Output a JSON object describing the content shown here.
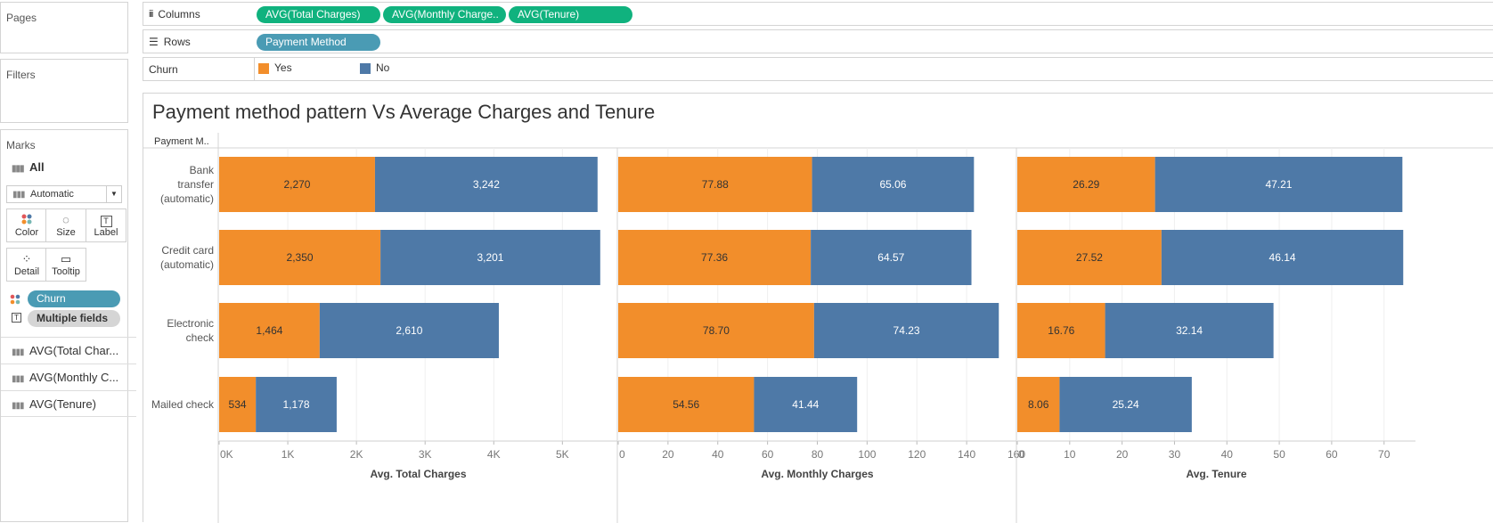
{
  "sidebar": {
    "pages_label": "Pages",
    "filters_label": "Filters",
    "marks_label": "Marks",
    "all_label": "All",
    "mark_type": "Automatic",
    "buttons": [
      {
        "label": "Color",
        "icon": "color-icon"
      },
      {
        "label": "Size",
        "icon": "size-icon"
      },
      {
        "label": "Label",
        "icon": "label-icon"
      },
      {
        "label": "Detail",
        "icon": "detail-icon"
      },
      {
        "label": "Tooltip",
        "icon": "tooltip-icon"
      }
    ],
    "color_pill": "Churn",
    "label_pill": "Multiple fields",
    "measures": [
      "AVG(Total Char...",
      "AVG(Monthly C...",
      "AVG(Tenure)"
    ]
  },
  "shelves": {
    "columns_label": "Columns",
    "columns_pills": [
      "AVG(Total Charges)",
      "AVG(Monthly Charge..",
      "AVG(Tenure)"
    ],
    "rows_label": "Rows",
    "rows_pills": [
      "Payment Method"
    ],
    "churn_label": "Churn",
    "legend": [
      {
        "label": "Yes",
        "color": "#f28e2b"
      },
      {
        "label": "No",
        "color": "#4e79a7"
      }
    ]
  },
  "chart_data": {
    "type": "bar",
    "title": "Payment method pattern Vs Average Charges and Tenure",
    "row_header": "Payment M..",
    "categories": [
      "Bank transfer (automatic)",
      "Credit card (automatic)",
      "Electronic check",
      "Mailed check"
    ],
    "category_lines": [
      [
        "Bank",
        "transfer",
        "(automatic)"
      ],
      [
        "Credit card",
        "(automatic)"
      ],
      [
        "Electronic",
        "check"
      ],
      [
        "Mailed check"
      ]
    ],
    "panels": [
      {
        "xlabel": "Avg. Total Charges",
        "xlim": [
          0,
          5800
        ],
        "ticks": [
          0,
          1000,
          2000,
          3000,
          4000,
          5000
        ],
        "tick_labels": [
          "0K",
          "1K",
          "2K",
          "3K",
          "4K",
          "5K"
        ],
        "series": [
          {
            "name": "Yes",
            "values": [
              2270,
              2350,
              1464,
              534
            ],
            "labels": [
              "2,270",
              "2,350",
              "1,464",
              "534"
            ]
          },
          {
            "name": "No",
            "values": [
              3242,
              3201,
              2610,
              1178
            ],
            "labels": [
              "3,242",
              "3,201",
              "2,610",
              "1,178"
            ]
          }
        ]
      },
      {
        "xlabel": "Avg. Monthly Charges",
        "xlim": [
          0,
          160
        ],
        "ticks": [
          0,
          20,
          40,
          60,
          80,
          100,
          120,
          140,
          160
        ],
        "tick_labels": [
          "0",
          "20",
          "40",
          "60",
          "80",
          "100",
          "120",
          "140",
          "160"
        ],
        "series": [
          {
            "name": "Yes",
            "values": [
              77.88,
              77.36,
              78.7,
              54.56
            ],
            "labels": [
              "77.88",
              "77.36",
              "78.70",
              "54.56"
            ]
          },
          {
            "name": "No",
            "values": [
              65.06,
              64.57,
              74.23,
              41.44
            ],
            "labels": [
              "65.06",
              "64.57",
              "74.23",
              "41.44"
            ]
          }
        ]
      },
      {
        "xlabel": "Avg. Tenure",
        "xlim": [
          0,
          76
        ],
        "ticks": [
          0,
          10,
          20,
          30,
          40,
          50,
          60,
          70
        ],
        "tick_labels": [
          "0",
          "10",
          "20",
          "30",
          "40",
          "50",
          "60",
          "70"
        ],
        "series": [
          {
            "name": "Yes",
            "values": [
              26.29,
              27.52,
              16.76,
              8.06
            ],
            "labels": [
              "26.29",
              "27.52",
              "16.76",
              "8.06"
            ]
          },
          {
            "name": "No",
            "values": [
              47.21,
              46.14,
              32.14,
              25.24
            ],
            "labels": [
              "47.21",
              "46.14",
              "32.14",
              "25.24"
            ]
          }
        ]
      }
    ],
    "colors": {
      "Yes": "#f28e2b",
      "No": "#4e79a7"
    },
    "legend": "top",
    "grid": true
  }
}
